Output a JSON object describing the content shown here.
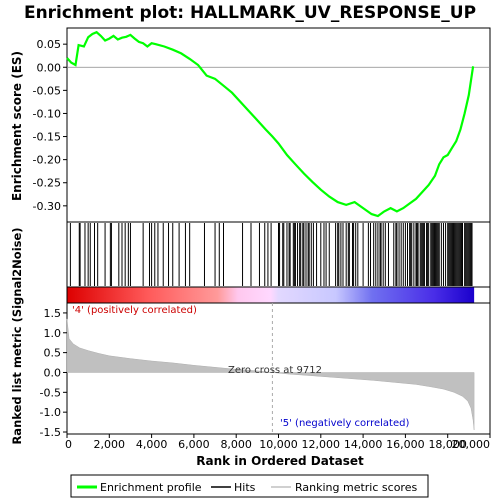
{
  "chart_data": {
    "title": "Enrichment plot: HALLMARK_UV_RESPONSE_UP",
    "type": "line",
    "es_panel": {
      "ylabel": "Enrichment score (ES)",
      "ylim": [
        -0.335,
        0.085
      ],
      "yticks": [
        "0.05",
        "0.00",
        "-0.05",
        "-0.10",
        "-0.15",
        "-0.20",
        "-0.25",
        "-0.30"
      ],
      "ytick_values": [
        0.05,
        0.0,
        -0.05,
        -0.1,
        -0.15,
        -0.2,
        -0.25,
        -0.3
      ],
      "grid": false,
      "series": [
        {
          "name": "Enrichment profile",
          "color": "#00ff00",
          "x": [
            0,
            200,
            400,
            550,
            800,
            1000,
            1200,
            1400,
            1600,
            1800,
            2000,
            2200,
            2400,
            2600,
            2800,
            3000,
            3200,
            3400,
            3600,
            3800,
            4000,
            4200,
            4600,
            5000,
            5400,
            5800,
            6200,
            6600,
            7000,
            7400,
            7800,
            8200,
            8600,
            9000,
            9400,
            9712,
            10000,
            10400,
            10800,
            11200,
            11600,
            12000,
            12400,
            12800,
            13200,
            13600,
            14000,
            14400,
            14700,
            15000,
            15300,
            15600,
            15900,
            16200,
            16500,
            16800,
            17100,
            17400,
            17600,
            17800,
            18000,
            18200,
            18400,
            18600,
            18800,
            19000,
            19200
          ],
          "y": [
            0.02,
            0.01,
            0.005,
            0.048,
            0.045,
            0.065,
            0.072,
            0.076,
            0.068,
            0.058,
            0.062,
            0.068,
            0.06,
            0.064,
            0.066,
            0.07,
            0.062,
            0.055,
            0.052,
            0.045,
            0.052,
            0.05,
            0.045,
            0.038,
            0.03,
            0.018,
            0.005,
            -0.018,
            -0.025,
            -0.04,
            -0.055,
            -0.075,
            -0.095,
            -0.115,
            -0.135,
            -0.15,
            -0.165,
            -0.19,
            -0.21,
            -0.23,
            -0.248,
            -0.265,
            -0.28,
            -0.292,
            -0.298,
            -0.292,
            -0.305,
            -0.318,
            -0.322,
            -0.312,
            -0.305,
            -0.312,
            -0.305,
            -0.295,
            -0.285,
            -0.27,
            -0.255,
            -0.235,
            -0.21,
            -0.195,
            -0.19,
            -0.175,
            -0.16,
            -0.135,
            -0.1,
            -0.06,
            0.002
          ]
        }
      ]
    },
    "hits": {
      "name": "Hits",
      "positions": [
        160,
        580,
        620,
        850,
        1000,
        1100,
        1300,
        1450,
        1800,
        2050,
        2100,
        2450,
        2600,
        2750,
        2900,
        3000,
        3600,
        3900,
        4000,
        4150,
        4300,
        4550,
        4800,
        5000,
        5300,
        5600,
        5800,
        6500,
        7000,
        7200,
        7400,
        8300,
        8700,
        9100,
        9350,
        9500,
        9650,
        10000,
        10050,
        10200,
        10250,
        10400,
        10500,
        10550,
        10700,
        10750,
        10800,
        10900,
        11000,
        11050,
        11150,
        11200,
        11300,
        11400,
        11450,
        11550,
        11650,
        11800,
        12000,
        12150,
        12250,
        12400,
        12700,
        12800,
        12850,
        12950,
        13050,
        13200,
        13300,
        13350,
        13500,
        13550,
        13650,
        13750,
        14000,
        14250,
        14350,
        14500,
        14600,
        14700,
        14800,
        14850,
        14950,
        15050,
        15200,
        15450,
        15550,
        15600,
        15700,
        15800,
        15900,
        16000,
        16100,
        16200,
        16250,
        16300,
        16400,
        16500,
        16550,
        16600,
        16700,
        16750,
        16800,
        16850,
        16900,
        17000,
        17050,
        17100,
        17200,
        17250,
        17300,
        17350,
        17400,
        17450,
        17500,
        17550,
        17600,
        17700,
        17800,
        17900,
        18000,
        18050,
        18100,
        18150,
        18200,
        18250,
        18300,
        18350,
        18400,
        18450,
        18500,
        18550,
        18600,
        18650,
        18700,
        18800,
        18850,
        18900,
        18950,
        19000,
        19050,
        19100,
        19150
      ]
    },
    "ranked_metric": {
      "name": "Ranking metric scores",
      "ylabel": "Ranked list metric (Signal2Noise)",
      "ylim": [
        -1.55,
        1.75
      ],
      "yticks": [
        "1.5",
        "1.0",
        "0.5",
        "0.0",
        "-0.5",
        "-1.0",
        "-1.5"
      ],
      "ytick_values": [
        1.5,
        1.0,
        0.5,
        0.0,
        -0.5,
        -1.0,
        -1.5
      ],
      "x": [
        0,
        100,
        300,
        600,
        1000,
        1500,
        2000,
        3000,
        4000,
        5000,
        6000,
        7000,
        8000,
        9000,
        9712,
        10500,
        11500,
        12500,
        13500,
        14500,
        15500,
        16500,
        17200,
        17800,
        18300,
        18700,
        18950,
        19100,
        19200,
        19250
      ],
      "values": [
        1.35,
        0.85,
        0.72,
        0.62,
        0.55,
        0.48,
        0.42,
        0.35,
        0.29,
        0.24,
        0.18,
        0.13,
        0.08,
        0.04,
        0.0,
        -0.04,
        -0.08,
        -0.12,
        -0.16,
        -0.2,
        -0.25,
        -0.3,
        -0.36,
        -0.42,
        -0.5,
        -0.6,
        -0.72,
        -0.9,
        -1.2,
        -1.45
      ],
      "zero_cross_label": "Zero cross at 9712",
      "zero_cross": 9712,
      "pos_label": "'4' (positively correlated)",
      "neg_label": "'5' (negatively correlated)",
      "pos_color": "#ff0000",
      "neg_color": "#0000ff",
      "fill_color": "#c0c0c0"
    },
    "xaxis": {
      "xlabel": "Rank in Ordered Dataset",
      "xlim": [
        0,
        20000
      ],
      "xticks": [
        "0",
        "2,000",
        "4,000",
        "6,000",
        "8,000",
        "10,000",
        "12,000",
        "14,000",
        "16,000",
        "18,000",
        "20,000"
      ],
      "xtick_values": [
        0,
        2000,
        4000,
        6000,
        8000,
        10000,
        12000,
        14000,
        16000,
        18000,
        20000
      ],
      "n_genes": 19250
    },
    "legend": {
      "placement": "bottom",
      "items": [
        {
          "label": "Enrichment profile",
          "color": "#00ff00"
        },
        {
          "label": "Hits",
          "color": "#000000"
        },
        {
          "label": "Ranking metric scores",
          "color": "#c0c0c0"
        }
      ]
    }
  }
}
